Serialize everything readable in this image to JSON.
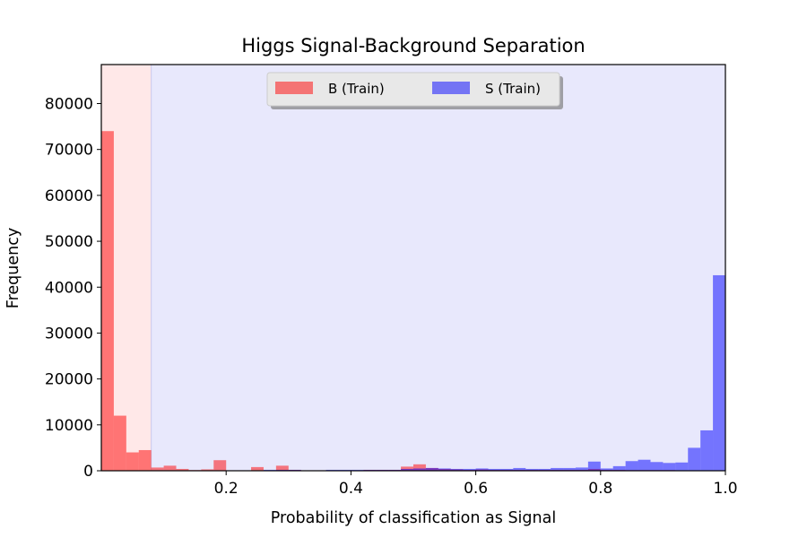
{
  "chart_data": {
    "type": "bar",
    "title": "Higgs Signal-Background Separation",
    "xlabel": "Probability of classification as Signal",
    "ylabel": "Frequency",
    "xlim": [
      0.0,
      1.0
    ],
    "ylim": [
      0,
      88500
    ],
    "x_ticks": [
      0.2,
      0.4,
      0.6,
      0.8,
      1.0
    ],
    "x_tick_labels": [
      "0.2",
      "0.4",
      "0.6",
      "0.8",
      "1.0"
    ],
    "y_ticks": [
      0,
      10000,
      20000,
      30000,
      40000,
      50000,
      60000,
      70000,
      80000
    ],
    "y_tick_labels": [
      "0",
      "10000",
      "20000",
      "30000",
      "40000",
      "50000",
      "60000",
      "70000",
      "80000"
    ],
    "grid": false,
    "legend_position": "top-center",
    "threshold": 0.08,
    "regions": [
      {
        "from": 0.0,
        "to": 0.08,
        "color": "#ffe8e8"
      },
      {
        "from": 0.08,
        "to": 1.0,
        "color": "#e8e8fc"
      }
    ],
    "bin_width": 0.02,
    "bin_starts": [
      0.0,
      0.02,
      0.04,
      0.06,
      0.08,
      0.1,
      0.12,
      0.14,
      0.16,
      0.18,
      0.2,
      0.22,
      0.24,
      0.26,
      0.28,
      0.3,
      0.32,
      0.34,
      0.36,
      0.38,
      0.4,
      0.42,
      0.44,
      0.46,
      0.48,
      0.5,
      0.52,
      0.54,
      0.56,
      0.58,
      0.6,
      0.62,
      0.64,
      0.66,
      0.68,
      0.7,
      0.72,
      0.74,
      0.76,
      0.78,
      0.8,
      0.82,
      0.84,
      0.86,
      0.88,
      0.9,
      0.92,
      0.94,
      0.96,
      0.98
    ],
    "series": [
      {
        "name": "B (Train)",
        "color": "#ff0000",
        "opacity": 0.5,
        "values": [
          74000,
          12000,
          4000,
          4500,
          700,
          1100,
          400,
          150,
          300,
          2300,
          100,
          100,
          800,
          100,
          1100,
          200,
          100,
          100,
          100,
          100,
          100,
          200,
          200,
          200,
          900,
          1400,
          600,
          400,
          300,
          200,
          300,
          200,
          200,
          200,
          200,
          200,
          200,
          200,
          200,
          400,
          200,
          200,
          150,
          150,
          150,
          150,
          100,
          100,
          100,
          100
        ]
      },
      {
        "name": "S (Train)",
        "color": "#0000ff",
        "opacity": 0.5,
        "values": [
          0,
          0,
          0,
          0,
          100,
          100,
          100,
          100,
          100,
          100,
          100,
          100,
          100,
          200,
          200,
          200,
          100,
          100,
          200,
          200,
          200,
          200,
          200,
          200,
          400,
          500,
          600,
          500,
          400,
          400,
          500,
          400,
          400,
          600,
          400,
          400,
          600,
          600,
          700,
          2000,
          500,
          1000,
          2100,
          2400,
          1900,
          1700,
          1800,
          5000,
          8800,
          42600
        ]
      }
    ]
  }
}
